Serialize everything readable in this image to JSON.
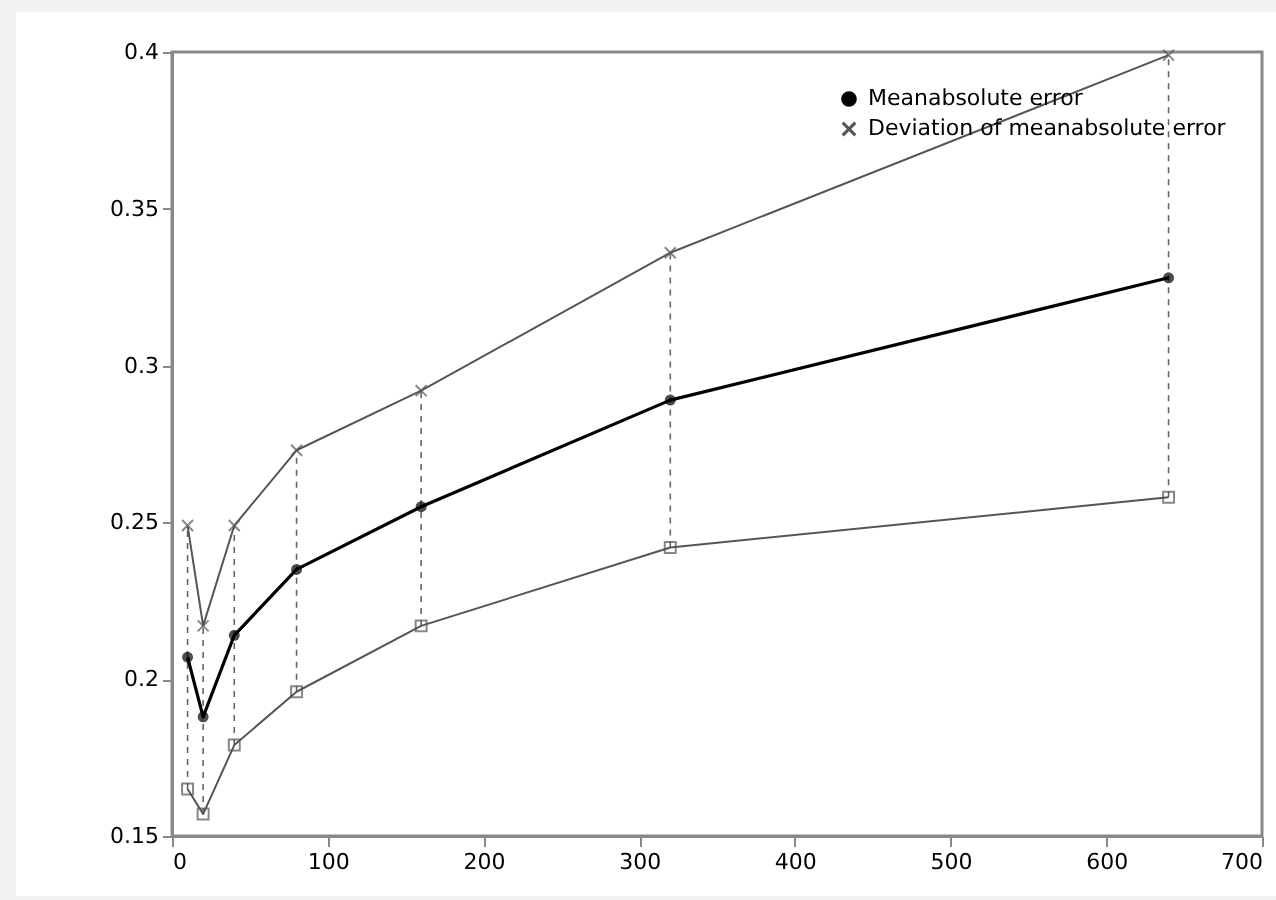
{
  "chart_data": {
    "type": "line",
    "x": [
      10,
      20,
      40,
      80,
      160,
      320,
      640
    ],
    "series": [
      {
        "name": "Meanabsolute error",
        "color": "#000000",
        "marker": "circle",
        "values": [
          0.207,
          0.188,
          0.214,
          0.235,
          0.255,
          0.289,
          0.328
        ],
        "errors": [
          [
            0.165,
            0.249
          ],
          [
            0.157,
            0.217
          ],
          [
            0.179,
            0.249
          ],
          [
            0.196,
            0.273
          ],
          [
            0.217,
            0.292
          ],
          [
            0.242,
            0.336
          ],
          [
            0.258,
            0.399
          ]
        ]
      },
      {
        "name": "Deviation of meanabsolute error",
        "color": "#555555",
        "marker": "cross",
        "values": [
          0.249,
          0.217,
          0.249,
          0.273,
          0.292,
          0.336,
          0.399
        ]
      },
      {
        "color": "#555555",
        "marker": "square",
        "values": [
          0.165,
          0.157,
          0.179,
          0.196,
          0.217,
          0.242,
          0.258
        ]
      }
    ],
    "xlim": [
      0,
      700
    ],
    "xticks": [
      0,
      100,
      200,
      300,
      400,
      500,
      600,
      700
    ],
    "ylim": [
      0.15,
      0.4
    ],
    "yticks": [
      0.15,
      0.2,
      0.25,
      0.3,
      0.35,
      0.4
    ],
    "grid": false,
    "legend": "top right"
  }
}
